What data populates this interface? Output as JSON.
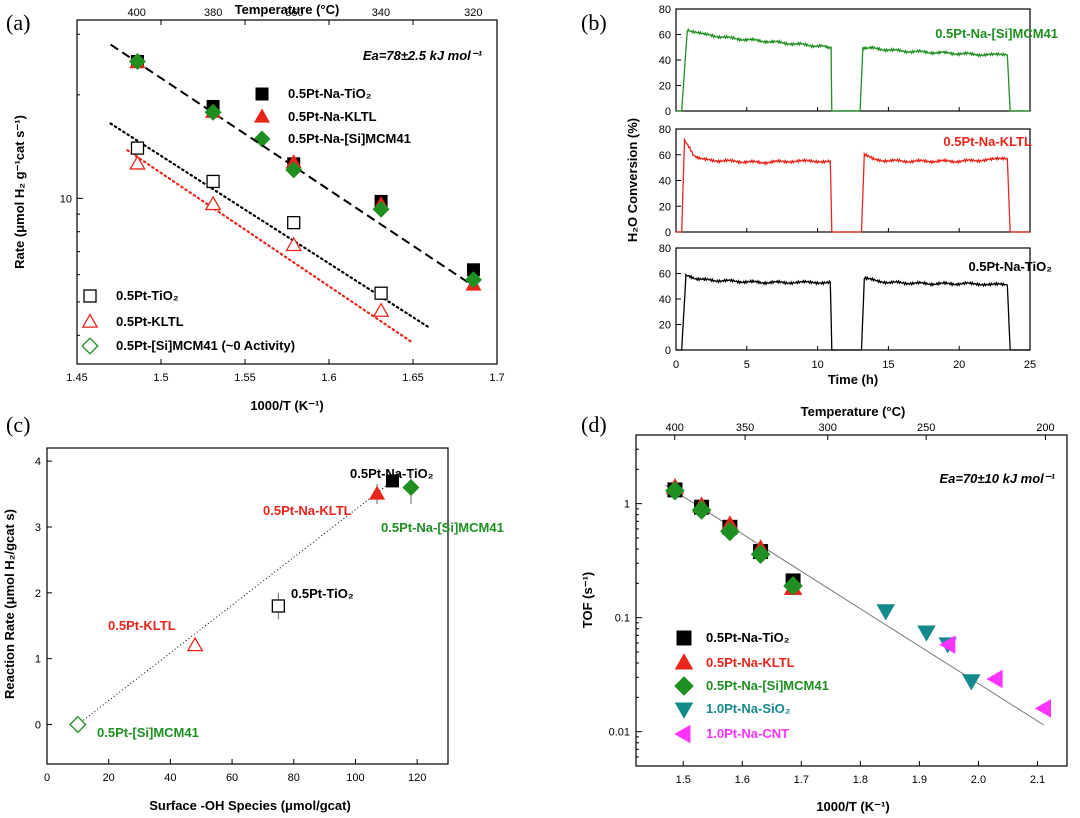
{
  "panel_labels": {
    "a": "(a)",
    "b": "(b)",
    "c": "(c)",
    "d": "(d)"
  },
  "colors": {
    "black": "#000000",
    "red": "#e8251b",
    "green": "#1f8f22",
    "teal": "#138a8c",
    "magenta": "#ff33ff"
  },
  "chart_data": [
    {
      "panel": "a",
      "type": "scatter",
      "xlabel": "1000/T (K⁻¹)",
      "ylabel": "Rate (μmol H₂ g⁻¹cat s⁻¹)",
      "top_axis_label": "Temperature (°C)",
      "xlim": [
        1.45,
        1.7
      ],
      "ylim": [
        3.3,
        33
      ],
      "yscale": "log",
      "x_ticks": [
        "1.45",
        "1.5",
        "1.55",
        "1.6",
        "1.65",
        "1.7"
      ],
      "y_ticks": [
        "10"
      ],
      "top_ticks": [
        "400",
        "380",
        "360",
        "340",
        "320"
      ],
      "annotation": "Ea=78±2.5 kJ mol⁻¹",
      "series": [
        {
          "name": "0.5Pt-Na-TiO₂",
          "marker": "square",
          "filled": true,
          "color": "#000000",
          "x": [
            1.486,
            1.531,
            1.579,
            1.631,
            1.686
          ],
          "y": [
            25.0,
            18.5,
            12.6,
            9.8,
            6.2
          ]
        },
        {
          "name": "0.5Pt-Na-KLTL",
          "marker": "triangle",
          "filled": true,
          "color": "#e8251b",
          "x": [
            1.486,
            1.531,
            1.579,
            1.631,
            1.686
          ],
          "y": [
            24.8,
            17.8,
            12.7,
            9.6,
            5.6
          ]
        },
        {
          "name": "0.5Pt-Na-[Si]MCM41",
          "marker": "diamond",
          "filled": true,
          "color": "#1f8f22",
          "x": [
            1.486,
            1.531,
            1.579,
            1.631,
            1.686
          ],
          "y": [
            25.0,
            17.8,
            12.1,
            9.3,
            5.8
          ]
        },
        {
          "name": "0.5Pt-TiO₂",
          "marker": "square",
          "filled": false,
          "color": "#000000",
          "x": [
            1.486,
            1.531,
            1.579,
            1.631
          ],
          "y": [
            14.0,
            11.2,
            8.5,
            5.3
          ]
        },
        {
          "name": "0.5Pt-KLTL",
          "marker": "triangle",
          "filled": false,
          "color": "#e8251b",
          "x": [
            1.486,
            1.531,
            1.579,
            1.631
          ],
          "y": [
            12.6,
            9.6,
            7.3,
            4.7
          ]
        },
        {
          "name": "0.5Pt-[Si]MCM41 (~0 Activity)",
          "marker": "diamond",
          "filled": false,
          "color": "#1f8f22",
          "x": [],
          "y": []
        }
      ],
      "fits": [
        {
          "style": "dashed",
          "color": "#000000",
          "x": [
            1.47,
            1.69
          ],
          "y": [
            28.0,
            5.4
          ]
        },
        {
          "style": "dotted",
          "color": "#000000",
          "x": [
            1.47,
            1.66
          ],
          "y": [
            16.5,
            4.2
          ]
        },
        {
          "style": "dotted",
          "color": "#e8251b",
          "x": [
            1.48,
            1.65
          ],
          "y": [
            13.8,
            3.8
          ]
        }
      ]
    },
    {
      "panel": "b",
      "type": "line",
      "xlabel": "Time (h)",
      "ylabel": "H₂O Conversion (%)",
      "xlim": [
        0,
        25
      ],
      "x_ticks": [
        "0",
        "5",
        "10",
        "15",
        "20",
        "25"
      ],
      "subplots": [
        {
          "name": "0.5Pt-Na-[Si]MCM41",
          "color": "#1f8f22",
          "ylim": [
            0,
            80
          ],
          "y_ticks": [
            "0",
            "20",
            "40",
            "60",
            "80"
          ],
          "x": [
            0,
            0.4,
            0.8,
            2,
            4,
            6,
            8,
            10,
            10.95,
            11.0,
            11.4,
            13.0,
            13.2,
            14,
            16,
            18,
            20,
            22,
            23.4,
            23.6,
            25
          ],
          "y": [
            0,
            0,
            64,
            60,
            57,
            55,
            53,
            51,
            50,
            0,
            0,
            0,
            50,
            49,
            47,
            46,
            45,
            44,
            44,
            0,
            0
          ]
        },
        {
          "name": "0.5Pt-Na-KLTL",
          "color": "#e8251b",
          "ylim": [
            0,
            80
          ],
          "y_ticks": [
            "0",
            "20",
            "40",
            "60",
            "80"
          ],
          "x": [
            0,
            0.4,
            0.6,
            1.2,
            2,
            4,
            6,
            8,
            10.9,
            11.0,
            11.4,
            13.1,
            13.3,
            14,
            16,
            18,
            20,
            22,
            23.4,
            23.6,
            25
          ],
          "y": [
            0,
            0,
            72,
            60,
            56,
            55,
            54,
            55,
            55,
            0,
            0,
            0,
            60,
            56,
            55,
            55,
            55,
            56,
            57,
            0,
            0
          ]
        },
        {
          "name": "0.5Pt-Na-TiO₂",
          "color": "#000000",
          "ylim": [
            0,
            80
          ],
          "y_ticks": [
            "0",
            "20",
            "40",
            "60",
            "80"
          ],
          "x": [
            0,
            0.4,
            0.7,
            2,
            4,
            6,
            8,
            10.9,
            11.0,
            11.4,
            13.1,
            13.3,
            15,
            18,
            21,
            23.4,
            23.6,
            25
          ],
          "y": [
            0,
            0,
            58,
            55,
            54,
            53,
            53,
            53,
            0,
            0,
            0,
            56,
            53,
            52,
            52,
            51,
            0,
            0
          ]
        }
      ]
    },
    {
      "panel": "c",
      "type": "scatter",
      "xlabel": "Surface -OH Species (μmol/gcat)",
      "ylabel": "Reaction Rate (μmol H₂/gcat s)",
      "xlim": [
        0,
        130
      ],
      "ylim": [
        -0.6,
        4.2
      ],
      "x_ticks": [
        "0",
        "20",
        "40",
        "60",
        "80",
        "100",
        "120"
      ],
      "y_ticks": [
        "0",
        "1",
        "2",
        "3",
        "4"
      ],
      "points": [
        {
          "name": "0.5Pt-[Si]MCM41",
          "marker": "diamond",
          "filled": false,
          "color": "#1f8f22",
          "x": 10,
          "y": 0.0,
          "err": 0
        },
        {
          "name": "0.5Pt-KLTL",
          "marker": "triangle",
          "filled": false,
          "color": "#e8251b",
          "x": 48,
          "y": 1.2,
          "err": 0
        },
        {
          "name": "0.5Pt-TiO₂",
          "marker": "square",
          "filled": false,
          "color": "#000000",
          "x": 75,
          "y": 1.8,
          "err": 0.2
        },
        {
          "name": "0.5Pt-Na-KLTL",
          "marker": "triangle",
          "filled": true,
          "color": "#e8251b",
          "x": 107,
          "y": 3.5,
          "err": 0.15
        },
        {
          "name": "0.5Pt-Na-TiO₂",
          "marker": "square",
          "filled": true,
          "color": "#000000",
          "x": 112,
          "y": 3.7,
          "err": 0.05
        },
        {
          "name": "0.5Pt-Na-[Si]MCM41",
          "marker": "diamond",
          "filled": true,
          "color": "#1f8f22",
          "x": 118,
          "y": 3.6,
          "err": 0.25
        }
      ],
      "fit": {
        "style": "dotted",
        "color": "#000000",
        "x": [
          10,
          112
        ],
        "y": [
          0.0,
          3.7
        ]
      }
    },
    {
      "panel": "d",
      "type": "scatter",
      "xlabel": "1000/T (K⁻¹)",
      "ylabel": "TOF (s⁻¹)",
      "top_axis_label": "Temperature (°C)",
      "xlim": [
        1.42,
        2.15
      ],
      "ylim": [
        0.005,
        4.0
      ],
      "yscale": "log",
      "x_ticks": [
        "1.5",
        "1.6",
        "1.7",
        "1.8",
        "1.9",
        "2.0",
        "2.1"
      ],
      "y_ticks": [
        "0.01",
        "0.1",
        "1"
      ],
      "top_ticks": [
        "400",
        "350",
        "300",
        "250",
        "200"
      ],
      "annotation": "Ea=70±10 kJ mol⁻¹",
      "series": [
        {
          "name": "0.5Pt-Na-TiO₂",
          "marker": "square",
          "filled": true,
          "color": "#000000",
          "x": [
            1.486,
            1.531,
            1.579,
            1.631,
            1.686
          ],
          "y": [
            1.32,
            0.93,
            0.62,
            0.38,
            0.21
          ]
        },
        {
          "name": "0.5Pt-Na-KLTL",
          "marker": "triangle",
          "filled": true,
          "color": "#e8251b",
          "x": [
            1.486,
            1.531,
            1.579,
            1.631,
            1.686
          ],
          "y": [
            1.38,
            0.95,
            0.65,
            0.4,
            0.18
          ]
        },
        {
          "name": "0.5Pt-Na-[Si]MCM41",
          "marker": "diamond",
          "filled": true,
          "color": "#1f8f22",
          "x": [
            1.486,
            1.531,
            1.579,
            1.631,
            1.686
          ],
          "y": [
            1.3,
            0.88,
            0.57,
            0.36,
            0.19
          ]
        },
        {
          "name": "1.0Pt-Na-SiO₂",
          "marker": "triangle-down",
          "filled": true,
          "color": "#138a8c",
          "x": [
            1.843,
            1.912,
            1.948,
            1.988
          ],
          "y": [
            0.115,
            0.075,
            0.059,
            0.028
          ]
        },
        {
          "name": "1.0Pt-Na-CNT",
          "marker": "triangle-left",
          "filled": true,
          "color": "#ff33ff",
          "x": [
            1.95,
            2.03,
            2.112
          ],
          "y": [
            0.058,
            0.029,
            0.016
          ]
        }
      ],
      "fit": {
        "style": "solid",
        "color": "#777777",
        "x": [
          1.47,
          2.11
        ],
        "y": [
          1.45,
          0.0115
        ]
      }
    }
  ]
}
